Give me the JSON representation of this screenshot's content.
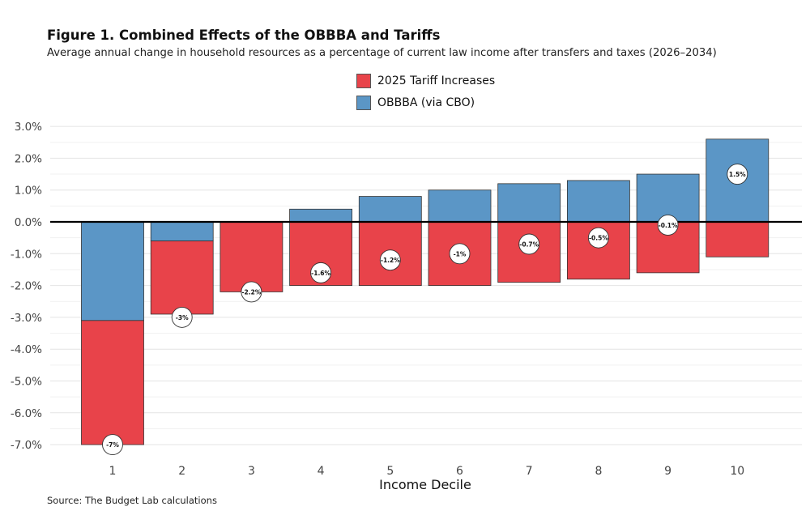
{
  "title": "Figure 1. Combined Effects of the OBBBA and Tariffs",
  "subtitle": "Average annual change in household resources as a percentage of current law income after transfers and taxes (2026–2034)",
  "source": "Source: The Budget Lab calculations",
  "chart_data": {
    "type": "bar",
    "stacked": true,
    "title": "Figure 1. Combined Effects of the OBBBA and Tariffs",
    "subtitle": "Average annual change in household resources as a percentage of current law income after transfers and taxes (2026–2034)",
    "xlabel": "Income Decile",
    "ylabel": "",
    "categories": [
      "1",
      "2",
      "3",
      "4",
      "5",
      "6",
      "7",
      "8",
      "9",
      "10"
    ],
    "ylim": [
      -7.0,
      3.0
    ],
    "yticks": [
      3.0,
      2.0,
      1.0,
      0.0,
      -1.0,
      -2.0,
      -3.0,
      -4.0,
      -5.0,
      -6.0,
      -7.0
    ],
    "ytick_labels": [
      "3.0%",
      "2.0%",
      "1.0%",
      "0.0%",
      "-1.0%",
      "-2.0%",
      "-3.0%",
      "-4.0%",
      "-5.0%",
      "-6.0%",
      "-7.0%"
    ],
    "grid": true,
    "legend_position": "top-center",
    "series": [
      {
        "name": "2025 Tariff Increases",
        "color": "#E8434A",
        "values": [
          -3.9,
          -2.3,
          -2.2,
          -2.0,
          -2.0,
          -2.0,
          -1.9,
          -1.8,
          -1.6,
          -1.1
        ]
      },
      {
        "name": "OBBBA (via CBO)",
        "color": "#5B96C6",
        "values": [
          -3.1,
          -0.6,
          0.0,
          0.4,
          0.8,
          1.0,
          1.2,
          1.3,
          1.5,
          2.6
        ]
      }
    ],
    "net_values": [
      -7.0,
      -3.0,
      -2.2,
      -1.6,
      -1.2,
      -1.0,
      -0.7,
      -0.5,
      -0.1,
      1.5
    ],
    "net_labels": [
      "-7%",
      "-3%",
      "-2.2%",
      "-1.6%",
      "-1.2%",
      "-1%",
      "-0.7%",
      "-0.5%",
      "-0.1%",
      "1.5%"
    ]
  }
}
